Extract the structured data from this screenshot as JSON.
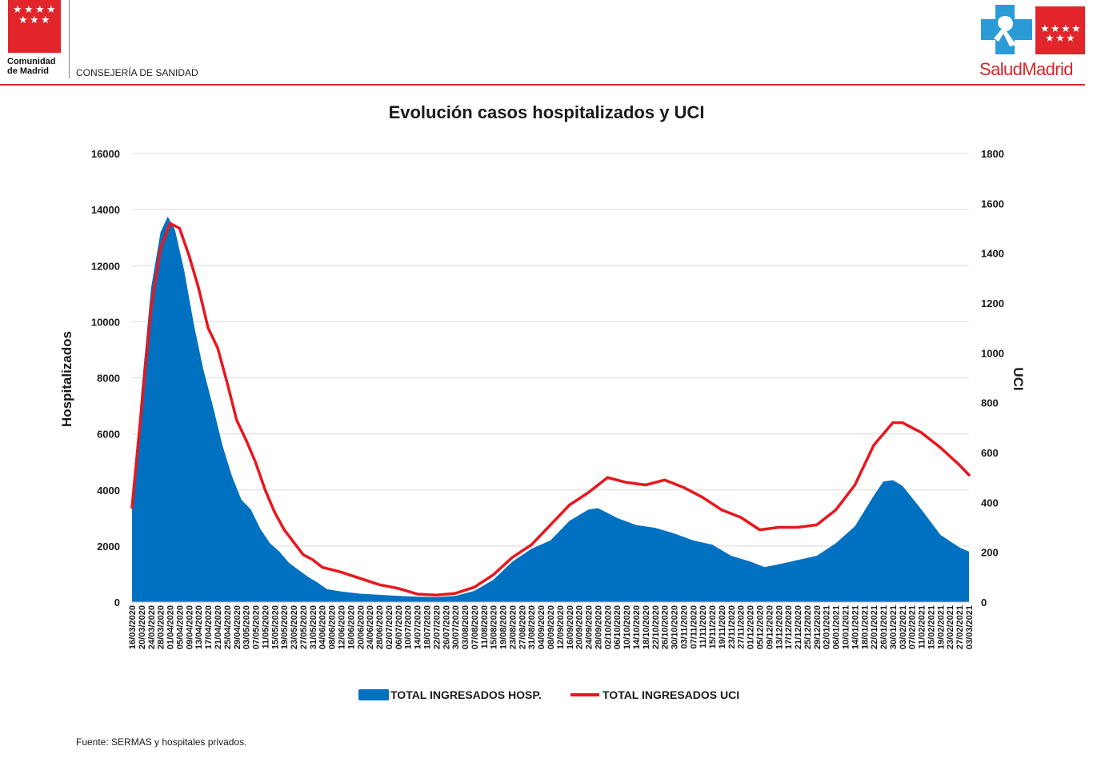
{
  "header": {
    "org_line1": "Comunidad",
    "org_line2": "de Madrid",
    "department": "CONSEJERÍA DE SANIDAD",
    "brand_part1": "Salud",
    "brand_part2": "Madrid",
    "brand_red": "#e1252a",
    "brand_blue": "#2a9bd7"
  },
  "source_note": "Fuente: SERMAS y hospitales privados.",
  "chart_data": {
    "type": "area+line",
    "title": "Evolución casos hospitalizados y UCI",
    "ylabel_left": "Hospitalizados",
    "ylabel_right": "UCI",
    "ylim_left": [
      0,
      16000
    ],
    "ylim_right": [
      0,
      1800
    ],
    "yticks_left": [
      "0",
      "2000",
      "4000",
      "6000",
      "8000",
      "10000",
      "12000",
      "14000",
      "16000"
    ],
    "yticks_right": [
      "0",
      "200",
      "400",
      "600",
      "800",
      "1000",
      "1200",
      "1400",
      "1600",
      "1800"
    ],
    "grid": true,
    "legend_position": "bottom",
    "x_start": "16/03/2020",
    "x_end": "03/03/2021",
    "x_tick_labels": [
      "16/03/2020",
      "20/03/2020",
      "24/03/2020",
      "28/03/2020",
      "01/04/2020",
      "05/04/2020",
      "09/04/2020",
      "13/04/2020",
      "17/04/2020",
      "21/04/2020",
      "25/04/2020",
      "29/04/2020",
      "03/05/2020",
      "07/05/2020",
      "11/05/2020",
      "15/05/2020",
      "19/05/2020",
      "23/05/2020",
      "27/05/2020",
      "31/05/2020",
      "04/06/2020",
      "08/06/2020",
      "12/06/2020",
      "16/06/2020",
      "20/06/2020",
      "24/06/2020",
      "28/06/2020",
      "02/07/2020",
      "06/07/2020",
      "10/07/2020",
      "14/07/2020",
      "18/07/2020",
      "22/07/2020",
      "26/07/2020",
      "30/07/2020",
      "03/08/2020",
      "07/08/2020",
      "11/08/2020",
      "15/08/2020",
      "19/08/2020",
      "23/08/2020",
      "27/08/2020",
      "31/08/2020",
      "04/09/2020",
      "08/09/2020",
      "12/09/2020",
      "16/09/2020",
      "20/09/2020",
      "24/09/2020",
      "28/09/2020",
      "02/10/2020",
      "06/10/2020",
      "10/10/2020",
      "14/10/2020",
      "18/10/2020",
      "22/10/2020",
      "26/10/2020",
      "30/10/2020",
      "03/11/2020",
      "07/11/2020",
      "11/11/2020",
      "15/11/2020",
      "19/11/2020",
      "23/11/2020",
      "27/11/2020",
      "01/12/2020",
      "05/12/2020",
      "09/12/2020",
      "13/12/2020",
      "17/12/2020",
      "21/12/2020",
      "25/12/2020",
      "29/12/2020",
      "02/01/2021",
      "06/01/2021",
      "10/01/2021",
      "14/01/2021",
      "18/01/2021",
      "22/01/2021",
      "26/01/2021",
      "30/01/2021",
      "03/02/2021",
      "07/02/2021",
      "11/02/2021",
      "15/02/2021",
      "19/02/2021",
      "23/02/2021",
      "27/02/2021",
      "03/03/2021"
    ],
    "series": [
      {
        "name": "TOTAL INGRESADOS HOSP.",
        "kind": "area",
        "axis": "left",
        "color": "#0071c1",
        "points": [
          [
            "16/03/2020",
            3300
          ],
          [
            "20/03/2020",
            7600
          ],
          [
            "24/03/2020",
            11200
          ],
          [
            "28/03/2020",
            13200
          ],
          [
            "31/03/2020",
            13750
          ],
          [
            "03/04/2020",
            13300
          ],
          [
            "07/04/2020",
            11800
          ],
          [
            "11/04/2020",
            9900
          ],
          [
            "15/04/2020",
            8300
          ],
          [
            "19/04/2020",
            7000
          ],
          [
            "23/04/2020",
            5600
          ],
          [
            "27/04/2020",
            4500
          ],
          [
            "01/05/2020",
            3650
          ],
          [
            "05/05/2020",
            3300
          ],
          [
            "09/05/2020",
            2600
          ],
          [
            "13/05/2020",
            2100
          ],
          [
            "17/05/2020",
            1800
          ],
          [
            "21/05/2020",
            1400
          ],
          [
            "25/05/2020",
            1150
          ],
          [
            "29/05/2020",
            900
          ],
          [
            "02/06/2020",
            700
          ],
          [
            "06/06/2020",
            460
          ],
          [
            "12/06/2020",
            380
          ],
          [
            "20/06/2020",
            300
          ],
          [
            "28/06/2020",
            260
          ],
          [
            "06/07/2020",
            220
          ],
          [
            "14/07/2020",
            190
          ],
          [
            "22/07/2020",
            180
          ],
          [
            "30/07/2020",
            220
          ],
          [
            "07/08/2020",
            400
          ],
          [
            "15/08/2020",
            800
          ],
          [
            "23/08/2020",
            1450
          ],
          [
            "31/08/2020",
            1900
          ],
          [
            "08/09/2020",
            2200
          ],
          [
            "16/09/2020",
            2900
          ],
          [
            "24/09/2020",
            3300
          ],
          [
            "28/09/2020",
            3350
          ],
          [
            "06/10/2020",
            3000
          ],
          [
            "14/10/2020",
            2750
          ],
          [
            "22/10/2020",
            2650
          ],
          [
            "30/10/2020",
            2450
          ],
          [
            "07/11/2020",
            2200
          ],
          [
            "15/11/2020",
            2050
          ],
          [
            "23/11/2020",
            1650
          ],
          [
            "01/12/2020",
            1450
          ],
          [
            "07/12/2020",
            1250
          ],
          [
            "13/12/2020",
            1350
          ],
          [
            "21/12/2020",
            1500
          ],
          [
            "29/12/2020",
            1650
          ],
          [
            "06/01/2021",
            2100
          ],
          [
            "14/01/2021",
            2700
          ],
          [
            "22/01/2021",
            3800
          ],
          [
            "26/01/2021",
            4300
          ],
          [
            "30/01/2021",
            4350
          ],
          [
            "03/02/2021",
            4150
          ],
          [
            "11/02/2021",
            3300
          ],
          [
            "19/02/2021",
            2400
          ],
          [
            "27/02/2021",
            1950
          ],
          [
            "03/03/2021",
            1800
          ]
        ]
      },
      {
        "name": "TOTAL INGRESADOS UCI",
        "kind": "line",
        "axis": "right",
        "color": "#e8171e",
        "points": [
          [
            "16/03/2020",
            380
          ],
          [
            "20/03/2020",
            780
          ],
          [
            "24/03/2020",
            1180
          ],
          [
            "28/03/2020",
            1420
          ],
          [
            "01/04/2020",
            1520
          ],
          [
            "05/04/2020",
            1500
          ],
          [
            "09/04/2020",
            1390
          ],
          [
            "13/04/2020",
            1260
          ],
          [
            "17/04/2020",
            1100
          ],
          [
            "21/04/2020",
            1020
          ],
          [
            "25/04/2020",
            880
          ],
          [
            "29/04/2020",
            730
          ],
          [
            "03/05/2020",
            650
          ],
          [
            "07/05/2020",
            560
          ],
          [
            "11/05/2020",
            450
          ],
          [
            "15/05/2020",
            360
          ],
          [
            "19/05/2020",
            290
          ],
          [
            "23/05/2020",
            240
          ],
          [
            "27/05/2020",
            190
          ],
          [
            "31/05/2020",
            170
          ],
          [
            "04/06/2020",
            140
          ],
          [
            "12/06/2020",
            120
          ],
          [
            "20/06/2020",
            95
          ],
          [
            "28/06/2020",
            70
          ],
          [
            "06/07/2020",
            55
          ],
          [
            "14/07/2020",
            32
          ],
          [
            "22/07/2020",
            28
          ],
          [
            "30/07/2020",
            35
          ],
          [
            "07/08/2020",
            60
          ],
          [
            "15/08/2020",
            110
          ],
          [
            "23/08/2020",
            180
          ],
          [
            "31/08/2020",
            230
          ],
          [
            "08/09/2020",
            310
          ],
          [
            "16/09/2020",
            390
          ],
          [
            "24/09/2020",
            440
          ],
          [
            "02/10/2020",
            500
          ],
          [
            "10/10/2020",
            480
          ],
          [
            "18/10/2020",
            470
          ],
          [
            "26/10/2020",
            490
          ],
          [
            "03/11/2020",
            460
          ],
          [
            "11/11/2020",
            420
          ],
          [
            "19/11/2020",
            370
          ],
          [
            "27/11/2020",
            340
          ],
          [
            "05/12/2020",
            290
          ],
          [
            "13/12/2020",
            300
          ],
          [
            "21/12/2020",
            300
          ],
          [
            "29/12/2020",
            310
          ],
          [
            "06/01/2021",
            370
          ],
          [
            "14/01/2021",
            470
          ],
          [
            "22/01/2021",
            630
          ],
          [
            "30/01/2021",
            720
          ],
          [
            "03/02/2021",
            720
          ],
          [
            "11/02/2021",
            680
          ],
          [
            "19/02/2021",
            620
          ],
          [
            "27/02/2021",
            550
          ],
          [
            "03/03/2021",
            510
          ]
        ]
      }
    ]
  }
}
